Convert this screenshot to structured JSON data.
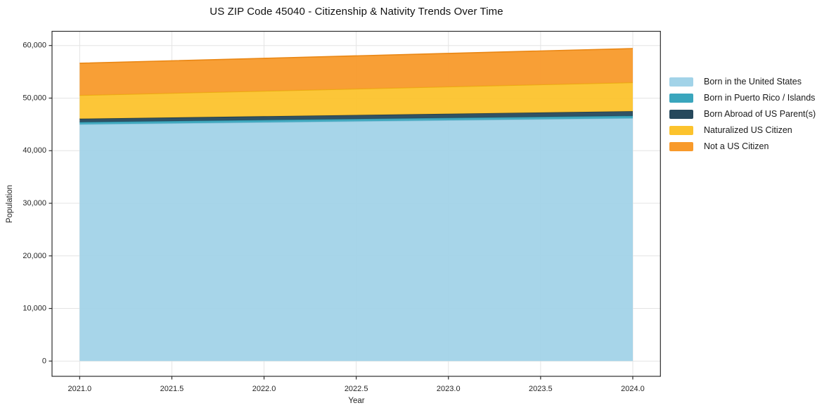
{
  "chart_data": {
    "type": "area",
    "stacked": true,
    "title": "US ZIP Code 45040 - Citizenship & Nativity Trends Over Time",
    "xlabel": "Year",
    "ylabel": "Population",
    "x": [
      2021,
      2022,
      2023,
      2024
    ],
    "series": [
      {
        "name": "Born in the United States",
        "color": "#a2d3e8",
        "edge": "#8cc3dc",
        "values": [
          45000,
          45390,
          45780,
          46170
        ]
      },
      {
        "name": "Born in Puerto Rico / Islands",
        "color": "#3aa6bd",
        "edge": "#2e93a9",
        "values": [
          430,
          440,
          450,
          460
        ]
      },
      {
        "name": "Born Abroad of US Parent(s)",
        "color": "#26495c",
        "edge": "#1d3a4a",
        "values": [
          640,
          720,
          800,
          880
        ]
      },
      {
        "name": "Naturalized US Citizen",
        "color": "#fcc32d",
        "edge": "#eab011",
        "values": [
          4460,
          4790,
          5130,
          5460
        ]
      },
      {
        "name": "Not a US Citizen",
        "color": "#f89a2b",
        "edge": "#ea8714",
        "values": [
          6100,
          6220,
          6340,
          6460
        ]
      }
    ],
    "totals": [
      56630,
      57560,
      58500,
      59430
    ],
    "xticks": [
      2021.0,
      2021.5,
      2022.0,
      2022.5,
      2023.0,
      2023.5,
      2024.0
    ],
    "xtick_labels": [
      "2021.0",
      "2021.5",
      "2022.0",
      "2022.5",
      "2023.0",
      "2023.5",
      "2024.0"
    ],
    "yticks": [
      0,
      10000,
      20000,
      30000,
      40000,
      50000,
      60000
    ],
    "ytick_labels": [
      "0",
      "10,000",
      "20,000",
      "30,000",
      "40,000",
      "50,000",
      "60,000"
    ],
    "xlim": [
      2020.85,
      2024.15
    ],
    "ylim": [
      -2900,
      62700
    ],
    "grid": true,
    "legend_position": "right-outside",
    "colors": {
      "grid": "#e4e4e4",
      "spine": "#2d2d2d",
      "tick_label": "#262626",
      "title_text": "#111111",
      "legend_text": "#1a1a1a",
      "background": "#ffffff"
    }
  }
}
